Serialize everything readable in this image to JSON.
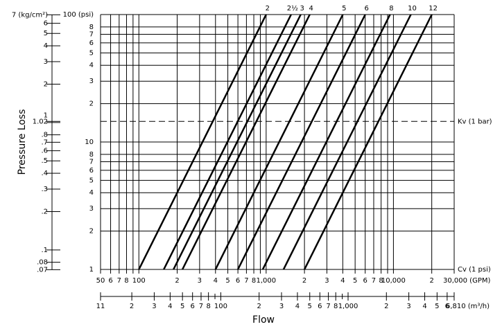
{
  "chart_data": {
    "type": "line",
    "y_axis_label": "Pressure Loss",
    "x_axis_label": "Flow",
    "xscale": "log",
    "yscale": "log",
    "grid": true,
    "xlim": [
      50,
      30000
    ],
    "xticks": [
      50,
      {
        "value": 60,
        "label": "6"
      },
      {
        "value": 70,
        "label": "7"
      },
      {
        "value": 80,
        "label": "8"
      },
      100,
      {
        "value": 200,
        "label": "2"
      },
      {
        "value": 300,
        "label": "3"
      },
      {
        "value": 400,
        "label": "4"
      },
      {
        "value": 500,
        "label": "5"
      },
      {
        "value": 600,
        "label": "6"
      },
      {
        "value": 700,
        "label": "7"
      },
      {
        "value": 800,
        "label": "8"
      },
      {
        "value": 1000,
        "label": "1,000"
      },
      {
        "value": 2000,
        "label": "2"
      },
      {
        "value": 3000,
        "label": "3"
      },
      {
        "value": 4000,
        "label": "4"
      },
      {
        "value": 5000,
        "label": "5"
      },
      {
        "value": 6000,
        "label": "6"
      },
      {
        "value": 7000,
        "label": "7"
      },
      {
        "value": 8000,
        "label": "8"
      },
      {
        "value": 10000,
        "label": "10,000"
      },
      {
        "value": 20000,
        "label": "2"
      },
      {
        "value": 30000,
        "label": "30,000 (GPM)"
      }
    ],
    "xminor": [
      90,
      900,
      9000
    ],
    "ylim": [
      1,
      100
    ],
    "yticks": [
      1,
      2,
      3,
      4,
      5,
      6,
      7,
      8,
      10,
      {
        "value": 20,
        "label": "2"
      },
      {
        "value": 30,
        "label": "3"
      },
      {
        "value": 40,
        "label": "4"
      },
      {
        "value": 50,
        "label": "5"
      },
      {
        "value": 60,
        "label": "6"
      },
      {
        "value": 70,
        "label": "7"
      },
      {
        "value": 80,
        "label": "8"
      },
      {
        "value": 100,
        "label": "100 (psi)"
      }
    ],
    "y2lim": [
      0.0703,
      7.031
    ],
    "y2ticks": [
      {
        "value": 0.07,
        "label": ".07"
      },
      {
        "value": 0.08,
        "label": ".08"
      },
      {
        "value": 0.1,
        "label": ".1"
      },
      {
        "value": 0.2,
        "label": ".2"
      },
      {
        "value": 0.3,
        "label": ".3"
      },
      {
        "value": 0.4,
        "label": ".4"
      },
      {
        "value": 0.5,
        "label": ".5"
      },
      {
        "value": 0.6,
        "label": ".6"
      },
      {
        "value": 0.7,
        "label": ".7"
      },
      {
        "value": 0.8,
        "label": ".8"
      },
      1.02,
      1,
      2,
      3,
      4,
      5,
      6,
      {
        "value": 7,
        "label": "7 (kg/cm²)"
      }
    ],
    "x2lim": [
      11.36,
      6813
    ],
    "x2ticks": [
      {
        "value": 11.36,
        "label": "11"
      },
      {
        "value": 20,
        "label": "2"
      },
      {
        "value": 30,
        "label": "3"
      },
      {
        "value": 40,
        "label": "4"
      },
      {
        "value": 50,
        "label": "5"
      },
      {
        "value": 60,
        "label": "6"
      },
      {
        "value": 70,
        "label": "7"
      },
      {
        "value": 80,
        "label": "8"
      },
      100,
      {
        "value": 200,
        "label": "2"
      },
      {
        "value": 300,
        "label": "3"
      },
      {
        "value": 400,
        "label": "4"
      },
      {
        "value": 500,
        "label": "5"
      },
      {
        "value": 600,
        "label": "6"
      },
      {
        "value": 700,
        "label": "7"
      },
      {
        "value": 800,
        "label": "8"
      },
      {
        "value": 1000,
        "label": "1,000"
      },
      {
        "value": 2000,
        "label": "2"
      },
      {
        "value": 3000,
        "label": "3"
      },
      {
        "value": 4000,
        "label": "4"
      },
      {
        "value": 5000,
        "label": "5"
      },
      {
        "value": 6000,
        "label": "6"
      },
      {
        "value": 6810,
        "label": "6,810 (m³/h)"
      }
    ],
    "x2minor": [
      90,
      900
    ],
    "reference_line": {
      "value": 14.5,
      "label": "Kv (1 bar)"
    },
    "base_line": {
      "value": 1,
      "label": "Cv (1 psi)"
    },
    "series": [
      {
        "name": "2",
        "color": "#000000",
        "x": [
          100,
          1000
        ],
        "values": [
          1,
          100
        ]
      },
      {
        "name": "2½",
        "color": "#000000",
        "x": [
          157,
          1570
        ],
        "values": [
          1,
          100
        ]
      },
      {
        "name": "3",
        "color": "#000000",
        "x": [
          187,
          1870
        ],
        "values": [
          1,
          100
        ]
      },
      {
        "name": "4",
        "color": "#000000",
        "x": [
          220,
          2200
        ],
        "values": [
          1,
          100
        ]
      },
      {
        "name": "5",
        "color": "#000000",
        "x": [
          400,
          4000
        ],
        "values": [
          1,
          100
        ]
      },
      {
        "name": "6",
        "color": "#000000",
        "x": [
          600,
          6000
        ],
        "values": [
          1,
          100
        ]
      },
      {
        "name": "8",
        "color": "#000000",
        "x": [
          940,
          9400
        ],
        "values": [
          1,
          100
        ]
      },
      {
        "name": "10",
        "color": "#000000",
        "x": [
          1370,
          13700
        ],
        "values": [
          1,
          100
        ]
      },
      {
        "name": "12",
        "color": "#000000",
        "x": [
          2000,
          20000
        ],
        "values": [
          1,
          100
        ]
      }
    ]
  }
}
